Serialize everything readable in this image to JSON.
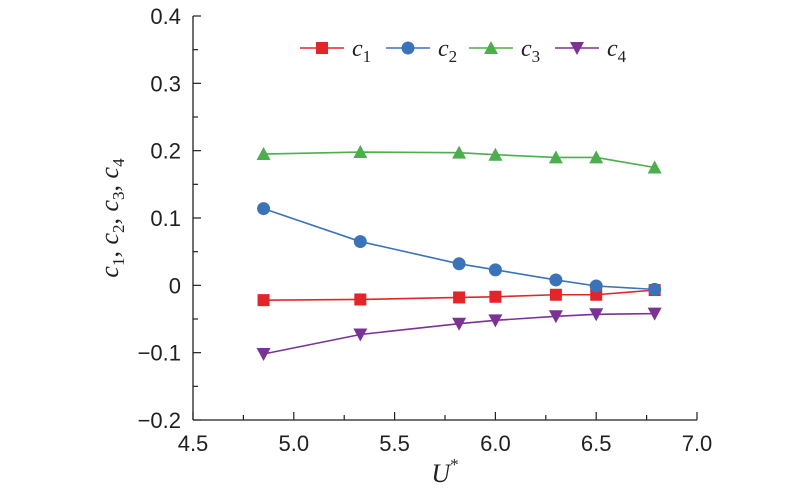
{
  "chart_data": {
    "type": "line",
    "xlabel": "U",
    "xlabel_sup": "*",
    "ylabel_parts": [
      {
        "base": "c",
        "sub": "1",
        "sep": ", "
      },
      {
        "base": "c",
        "sub": "2",
        "sep": ", "
      },
      {
        "base": "c",
        "sub": "3",
        "sep": ", "
      },
      {
        "base": "c",
        "sub": "4",
        "sep": ""
      }
    ],
    "xlim": [
      4.5,
      7.0
    ],
    "ylim": [
      -0.2,
      0.4
    ],
    "x_ticks": [
      "4.5",
      "5.0",
      "5.5",
      "6.0",
      "6.5",
      "7.0"
    ],
    "y_ticks": [
      "−0.2",
      "−0.1",
      "0",
      "0.1",
      "0.2",
      "0.3",
      "0.4"
    ],
    "legend_position": "top",
    "x": [
      4.85,
      5.33,
      5.82,
      6.0,
      6.3,
      6.5,
      6.79
    ],
    "series": [
      {
        "name": "c",
        "sub": "1",
        "color": "#e32529",
        "marker": "square",
        "values": [
          -0.022,
          -0.021,
          -0.018,
          -0.017,
          -0.014,
          -0.014,
          -0.007
        ]
      },
      {
        "name": "c",
        "sub": "2",
        "color": "#3b73b9",
        "marker": "circle",
        "values": [
          0.114,
          0.065,
          0.032,
          0.023,
          0.008,
          -0.001,
          -0.006
        ]
      },
      {
        "name": "c",
        "sub": "3",
        "color": "#4cae4c",
        "marker": "triangle-up",
        "values": [
          0.195,
          0.198,
          0.197,
          0.194,
          0.19,
          0.19,
          0.175
        ]
      },
      {
        "name": "c",
        "sub": "4",
        "color": "#7b3294",
        "marker": "triangle-down",
        "values": [
          -0.102,
          -0.073,
          -0.057,
          -0.052,
          -0.046,
          -0.043,
          -0.042
        ]
      }
    ]
  }
}
